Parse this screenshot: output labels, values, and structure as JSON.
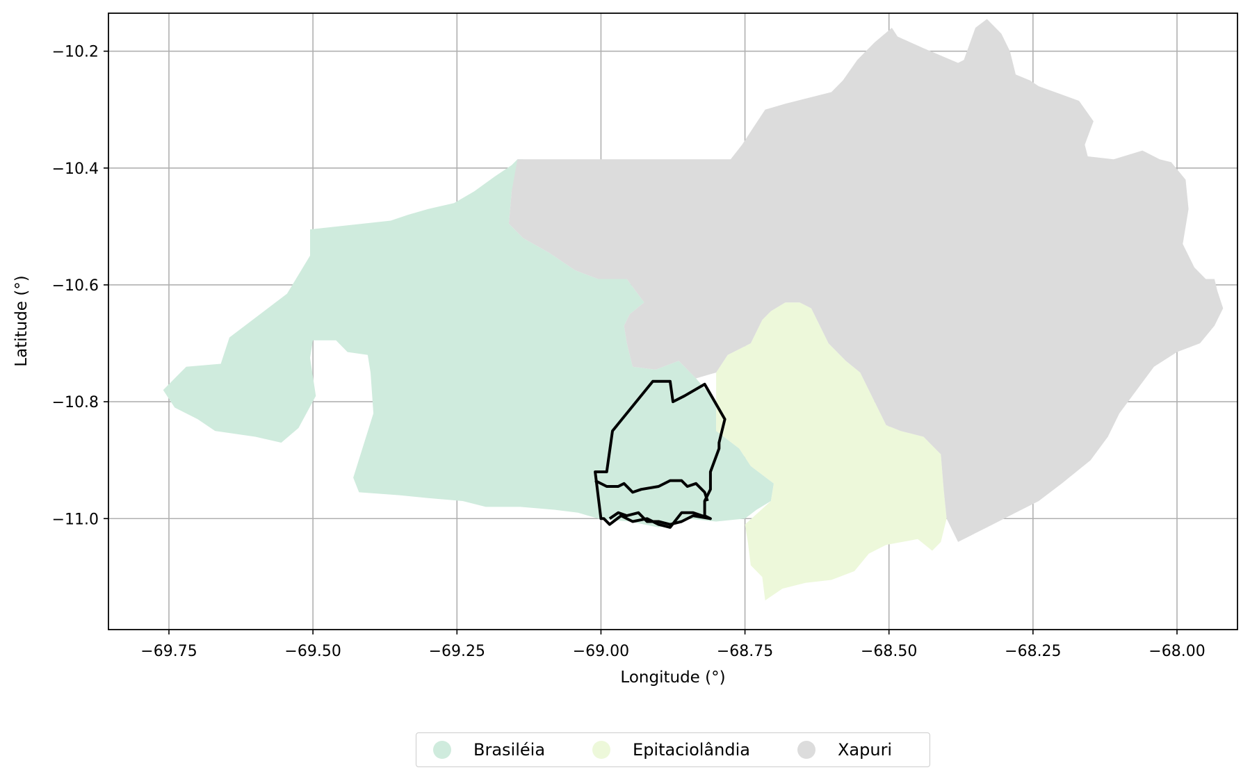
{
  "chart_data": {
    "type": "map",
    "xlabel": "Longitude (°)",
    "ylabel": "Latitude (°)",
    "xlim": [
      -69.855,
      -67.895
    ],
    "ylim": [
      -11.19,
      -10.135
    ],
    "x_ticks": [
      "−69.75",
      "−69.50",
      "−69.25",
      "−69.00",
      "−68.75",
      "−68.50",
      "−68.25",
      "−68.00"
    ],
    "x_tick_values": [
      -69.75,
      -69.5,
      -69.25,
      -69.0,
      -68.75,
      -68.5,
      -68.25,
      -68.0
    ],
    "y_ticks": [
      "−10.2",
      "−10.4",
      "−10.6",
      "−10.8",
      "−11.0"
    ],
    "y_tick_values": [
      -10.2,
      -10.4,
      -10.6,
      -10.8,
      -11.0
    ],
    "grid": true,
    "legend_position": "bottom-center",
    "regions": [
      {
        "name": "Brasiléia",
        "color": "#cfebdd",
        "polygon": [
          [
            -69.135,
            -10.385
          ],
          [
            -69.145,
            -10.385
          ],
          [
            -69.155,
            -10.395
          ],
          [
            -69.185,
            -10.415
          ],
          [
            -69.22,
            -10.44
          ],
          [
            -69.255,
            -10.46
          ],
          [
            -69.3,
            -10.47
          ],
          [
            -69.335,
            -10.48
          ],
          [
            -69.365,
            -10.49
          ],
          [
            -69.505,
            -10.505
          ],
          [
            -69.505,
            -10.55
          ],
          [
            -69.545,
            -10.615
          ],
          [
            -69.645,
            -10.69
          ],
          [
            -69.66,
            -10.735
          ],
          [
            -69.72,
            -10.74
          ],
          [
            -69.76,
            -10.78
          ],
          [
            -69.74,
            -10.81
          ],
          [
            -69.7,
            -10.83
          ],
          [
            -69.67,
            -10.85
          ],
          [
            -69.6,
            -10.86
          ],
          [
            -69.555,
            -10.87
          ],
          [
            -69.525,
            -10.845
          ],
          [
            -69.495,
            -10.79
          ],
          [
            -69.505,
            -10.725
          ],
          [
            -69.5,
            -10.695
          ],
          [
            -69.46,
            -10.695
          ],
          [
            -69.44,
            -10.715
          ],
          [
            -69.405,
            -10.72
          ],
          [
            -69.4,
            -10.75
          ],
          [
            -69.395,
            -10.82
          ],
          [
            -69.43,
            -10.93
          ],
          [
            -69.42,
            -10.955
          ],
          [
            -69.35,
            -10.96
          ],
          [
            -69.3,
            -10.965
          ],
          [
            -69.24,
            -10.97
          ],
          [
            -69.2,
            -10.98
          ],
          [
            -69.14,
            -10.98
          ],
          [
            -69.08,
            -10.985
          ],
          [
            -69.04,
            -10.99
          ],
          [
            -69.005,
            -11.0
          ],
          [
            -68.95,
            -11.005
          ],
          [
            -68.9,
            -11.015
          ],
          [
            -68.85,
            -11.0
          ],
          [
            -68.8,
            -11.005
          ],
          [
            -68.75,
            -11.0
          ],
          [
            -68.73,
            -10.985
          ],
          [
            -68.705,
            -10.97
          ],
          [
            -68.7,
            -10.94
          ],
          [
            -68.74,
            -10.91
          ],
          [
            -68.76,
            -10.88
          ],
          [
            -68.8,
            -10.85
          ],
          [
            -68.8,
            -10.8
          ],
          [
            -68.835,
            -10.76
          ],
          [
            -68.865,
            -10.73
          ],
          [
            -68.905,
            -10.745
          ],
          [
            -68.945,
            -10.74
          ],
          [
            -68.955,
            -10.7
          ],
          [
            -68.96,
            -10.67
          ],
          [
            -68.95,
            -10.65
          ],
          [
            -68.925,
            -10.63
          ],
          [
            -68.94,
            -10.61
          ],
          [
            -68.955,
            -10.59
          ],
          [
            -69.005,
            -10.59
          ],
          [
            -69.045,
            -10.575
          ],
          [
            -69.09,
            -10.545
          ],
          [
            -69.135,
            -10.52
          ],
          [
            -69.16,
            -10.495
          ],
          [
            -69.155,
            -10.44
          ]
        ]
      },
      {
        "name": "Epitaciolândia",
        "color": "#edf8da",
        "polygon": [
          [
            -68.74,
            -10.7
          ],
          [
            -68.72,
            -10.66
          ],
          [
            -68.705,
            -10.645
          ],
          [
            -68.68,
            -10.63
          ],
          [
            -68.655,
            -10.63
          ],
          [
            -68.635,
            -10.64
          ],
          [
            -68.605,
            -10.7
          ],
          [
            -68.575,
            -10.73
          ],
          [
            -68.55,
            -10.75
          ],
          [
            -68.525,
            -10.8
          ],
          [
            -68.505,
            -10.84
          ],
          [
            -68.48,
            -10.85
          ],
          [
            -68.44,
            -10.86
          ],
          [
            -68.41,
            -10.89
          ],
          [
            -68.405,
            -10.95
          ],
          [
            -68.4,
            -11.0
          ],
          [
            -68.41,
            -11.04
          ],
          [
            -68.425,
            -11.055
          ],
          [
            -68.45,
            -11.035
          ],
          [
            -68.505,
            -11.045
          ],
          [
            -68.535,
            -11.06
          ],
          [
            -68.56,
            -11.09
          ],
          [
            -68.6,
            -11.105
          ],
          [
            -68.645,
            -11.11
          ],
          [
            -68.685,
            -11.12
          ],
          [
            -68.715,
            -11.14
          ],
          [
            -68.72,
            -11.1
          ],
          [
            -68.74,
            -11.08
          ],
          [
            -68.745,
            -11.04
          ],
          [
            -68.75,
            -11.01
          ],
          [
            -68.705,
            -10.97
          ],
          [
            -68.7,
            -10.94
          ],
          [
            -68.74,
            -10.91
          ],
          [
            -68.76,
            -10.88
          ],
          [
            -68.8,
            -10.85
          ],
          [
            -68.8,
            -10.8
          ],
          [
            -68.8,
            -10.75
          ],
          [
            -68.78,
            -10.72
          ]
        ]
      },
      {
        "name": "Xapuri",
        "color": "#dcdcdc",
        "polygon": [
          [
            -69.145,
            -10.385
          ],
          [
            -68.775,
            -10.385
          ],
          [
            -68.755,
            -10.36
          ],
          [
            -68.735,
            -10.33
          ],
          [
            -68.715,
            -10.3
          ],
          [
            -68.68,
            -10.29
          ],
          [
            -68.6,
            -10.27
          ],
          [
            -68.58,
            -10.25
          ],
          [
            -68.555,
            -10.215
          ],
          [
            -68.525,
            -10.185
          ],
          [
            -68.495,
            -10.16
          ],
          [
            -68.485,
            -10.175
          ],
          [
            -68.44,
            -10.195
          ],
          [
            -68.38,
            -10.22
          ],
          [
            -68.37,
            -10.215
          ],
          [
            -68.35,
            -10.16
          ],
          [
            -68.33,
            -10.145
          ],
          [
            -68.305,
            -10.17
          ],
          [
            -68.29,
            -10.2
          ],
          [
            -68.28,
            -10.24
          ],
          [
            -68.255,
            -10.25
          ],
          [
            -68.24,
            -10.26
          ],
          [
            -68.17,
            -10.285
          ],
          [
            -68.145,
            -10.32
          ],
          [
            -68.16,
            -10.36
          ],
          [
            -68.155,
            -10.38
          ],
          [
            -68.11,
            -10.385
          ],
          [
            -68.06,
            -10.37
          ],
          [
            -68.03,
            -10.385
          ],
          [
            -68.01,
            -10.39
          ],
          [
            -67.985,
            -10.42
          ],
          [
            -67.98,
            -10.47
          ],
          [
            -67.99,
            -10.53
          ],
          [
            -67.97,
            -10.57
          ],
          [
            -67.95,
            -10.59
          ],
          [
            -67.935,
            -10.59
          ],
          [
            -67.93,
            -10.61
          ],
          [
            -67.92,
            -10.64
          ],
          [
            -67.935,
            -10.67
          ],
          [
            -67.96,
            -10.7
          ],
          [
            -68.0,
            -10.715
          ],
          [
            -68.04,
            -10.74
          ],
          [
            -68.07,
            -10.78
          ],
          [
            -68.1,
            -10.82
          ],
          [
            -68.12,
            -10.86
          ],
          [
            -68.15,
            -10.9
          ],
          [
            -68.2,
            -10.94
          ],
          [
            -68.24,
            -10.97
          ],
          [
            -68.28,
            -10.99
          ],
          [
            -68.32,
            -11.01
          ],
          [
            -68.35,
            -11.025
          ],
          [
            -68.38,
            -11.04
          ],
          [
            -68.4,
            -11.0
          ],
          [
            -68.405,
            -10.95
          ],
          [
            -68.41,
            -10.89
          ],
          [
            -68.44,
            -10.86
          ],
          [
            -68.48,
            -10.85
          ],
          [
            -68.505,
            -10.84
          ],
          [
            -68.525,
            -10.8
          ],
          [
            -68.55,
            -10.75
          ],
          [
            -68.575,
            -10.73
          ],
          [
            -68.605,
            -10.7
          ],
          [
            -68.635,
            -10.64
          ],
          [
            -68.655,
            -10.63
          ],
          [
            -68.68,
            -10.63
          ],
          [
            -68.705,
            -10.645
          ],
          [
            -68.72,
            -10.66
          ],
          [
            -68.74,
            -10.7
          ],
          [
            -68.78,
            -10.72
          ],
          [
            -68.8,
            -10.75
          ],
          [
            -68.835,
            -10.76
          ],
          [
            -68.865,
            -10.73
          ],
          [
            -68.905,
            -10.745
          ],
          [
            -68.945,
            -10.74
          ],
          [
            -68.955,
            -10.7
          ],
          [
            -68.96,
            -10.67
          ],
          [
            -68.95,
            -10.65
          ],
          [
            -68.925,
            -10.63
          ],
          [
            -68.94,
            -10.61
          ],
          [
            -68.955,
            -10.59
          ],
          [
            -69.005,
            -10.59
          ],
          [
            -69.045,
            -10.575
          ],
          [
            -69.09,
            -10.545
          ],
          [
            -69.135,
            -10.52
          ],
          [
            -69.16,
            -10.495
          ],
          [
            -69.155,
            -10.44
          ]
        ]
      }
    ],
    "outline": {
      "color": "#000000",
      "outer": [
        [
          -68.98,
          -10.85
        ],
        [
          -68.91,
          -10.765
        ],
        [
          -68.88,
          -10.765
        ],
        [
          -68.875,
          -10.8
        ],
        [
          -68.855,
          -10.79
        ],
        [
          -68.82,
          -10.77
        ],
        [
          -68.785,
          -10.83
        ],
        [
          -68.795,
          -10.87
        ],
        [
          -68.795,
          -10.88
        ],
        [
          -68.81,
          -10.92
        ],
        [
          -68.81,
          -10.95
        ],
        [
          -68.82,
          -10.97
        ],
        [
          -68.82,
          -10.995
        ],
        [
          -68.81,
          -11.0
        ],
        [
          -68.84,
          -10.99
        ],
        [
          -68.86,
          -10.99
        ],
        [
          -68.88,
          -11.015
        ],
        [
          -68.9,
          -11.01
        ],
        [
          -68.92,
          -11.0
        ],
        [
          -68.945,
          -11.005
        ],
        [
          -68.965,
          -10.995
        ],
        [
          -68.985,
          -11.01
        ],
        [
          -68.995,
          -11.0
        ],
        [
          -69.0,
          -11.0
        ],
        [
          -69.01,
          -10.92
        ],
        [
          -68.99,
          -10.92
        ],
        [
          -68.98,
          -10.85
        ]
      ],
      "inner": [
        [
          -69.01,
          -10.935
        ],
        [
          -68.99,
          -10.945
        ],
        [
          -68.97,
          -10.945
        ],
        [
          -68.96,
          -10.94
        ],
        [
          -68.945,
          -10.955
        ],
        [
          -68.93,
          -10.95
        ],
        [
          -68.9,
          -10.945
        ],
        [
          -68.88,
          -10.935
        ],
        [
          -68.86,
          -10.935
        ],
        [
          -68.85,
          -10.945
        ],
        [
          -68.835,
          -10.94
        ],
        [
          -68.82,
          -10.955
        ],
        [
          -68.815,
          -10.97
        ]
      ],
      "bottom": [
        [
          -68.985,
          -11.0
        ],
        [
          -68.97,
          -10.99
        ],
        [
          -68.955,
          -10.995
        ],
        [
          -68.935,
          -10.99
        ],
        [
          -68.92,
          -11.005
        ],
        [
          -68.9,
          -11.005
        ],
        [
          -68.88,
          -11.01
        ],
        [
          -68.86,
          -11.005
        ],
        [
          -68.84,
          -10.995
        ],
        [
          -68.81,
          -11.0
        ]
      ]
    }
  },
  "legend": [
    {
      "label": "Brasiléia",
      "color": "#cfebdd"
    },
    {
      "label": "Epitaciolândia",
      "color": "#edf8da"
    },
    {
      "label": "Xapuri",
      "color": "#dcdcdc"
    }
  ]
}
